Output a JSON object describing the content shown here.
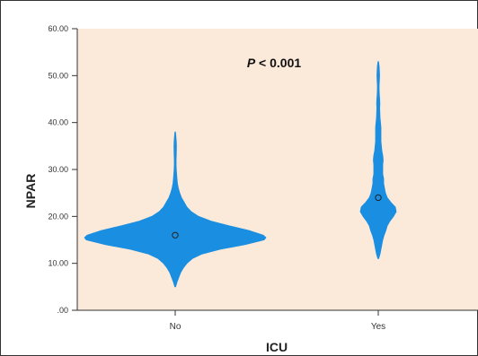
{
  "chart_data": {
    "type": "violin",
    "title": "",
    "annotation": "P < 0.001",
    "annotation_italic_part": "P",
    "annotation_rest": " < 0.001",
    "xlabel": "ICU",
    "ylabel": "NPAR",
    "categories": [
      "No",
      "Yes"
    ],
    "ylim": [
      0,
      60
    ],
    "yticks": [
      0,
      10,
      20,
      30,
      40,
      50,
      60
    ],
    "ytick_labels": [
      ".00",
      "10.00",
      "20.00",
      "30.00",
      "40.00",
      "50.00",
      "60.00"
    ],
    "medians": [
      16,
      24
    ],
    "distribution_range": [
      [
        5,
        38
      ],
      [
        11,
        53
      ]
    ],
    "colors": {
      "violin": "#1a8ee0",
      "plot_background": "#fbe9da",
      "median_marker": "#222222"
    },
    "grid": false
  }
}
